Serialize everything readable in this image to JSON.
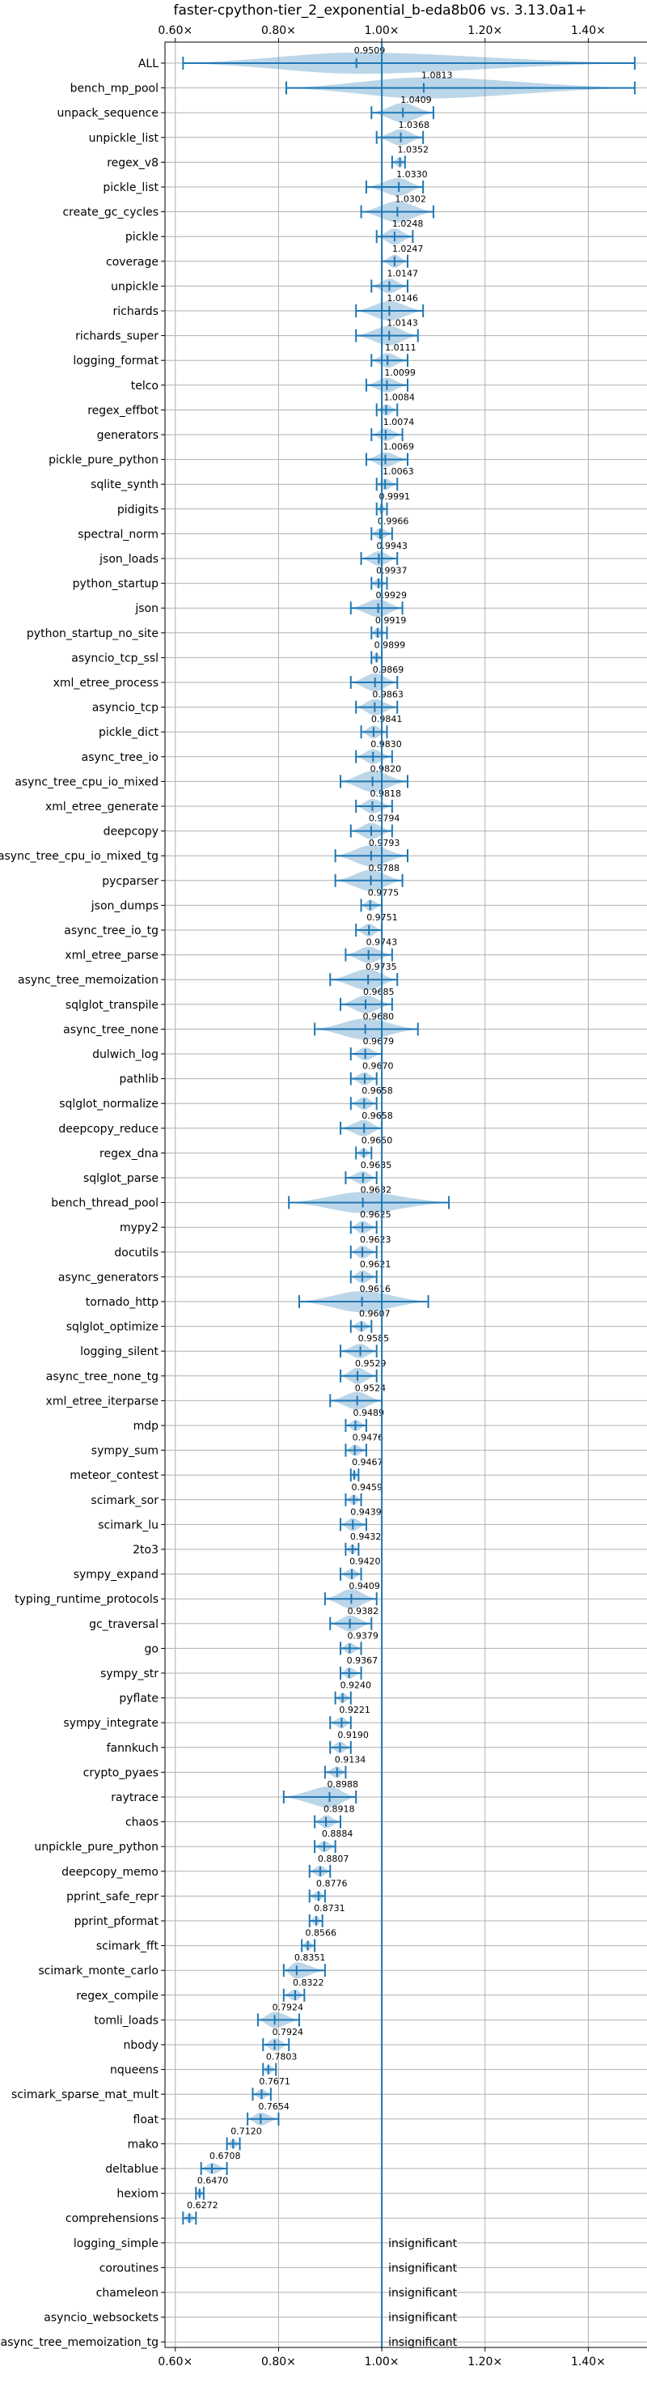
{
  "chart_data": {
    "type": "violin",
    "title": "faster-cpython-tier_2_exponential_b-eda8b06 vs. 3.13.0a1+",
    "x_ticks": [
      "0.60×",
      "0.80×",
      "1.00×",
      "1.20×",
      "1.40×"
    ],
    "x_tick_values": [
      0.6,
      0.8,
      1.0,
      1.2,
      1.4
    ],
    "xlim": [
      0.58,
      1.52
    ],
    "reference_line": 1.0,
    "grid": true,
    "insignificant_label": "insignificant",
    "rows": [
      {
        "name": "ALL",
        "value": "0.9509",
        "v": 0.9509,
        "lo": 0.615,
        "hi": 1.49,
        "spread": 0.06
      },
      {
        "name": "bench_mp_pool",
        "value": "1.0813",
        "v": 1.0813,
        "lo": 0.815,
        "hi": 1.49,
        "spread": 0.3
      },
      {
        "name": "unpack_sequence",
        "value": "1.0409",
        "v": 1.0409,
        "lo": 0.98,
        "hi": 1.1,
        "spread": 0.04
      },
      {
        "name": "unpickle_list",
        "value": "1.0368",
        "v": 1.0368,
        "lo": 0.99,
        "hi": 1.08,
        "spread": 0.03
      },
      {
        "name": "regex_v8",
        "value": "1.0352",
        "v": 1.0352,
        "lo": 1.02,
        "hi": 1.045,
        "spread": 0.012
      },
      {
        "name": "pickle_list",
        "value": "1.0330",
        "v": 1.033,
        "lo": 0.97,
        "hi": 1.08,
        "spread": 0.035
      },
      {
        "name": "create_gc_cycles",
        "value": "1.0302",
        "v": 1.0302,
        "lo": 0.96,
        "hi": 1.1,
        "spread": 0.045
      },
      {
        "name": "pickle",
        "value": "1.0248",
        "v": 1.0248,
        "lo": 0.99,
        "hi": 1.06,
        "spread": 0.03
      },
      {
        "name": "coverage",
        "value": "1.0247",
        "v": 1.0247,
        "lo": 1.0,
        "hi": 1.05,
        "spread": 0.02
      },
      {
        "name": "unpickle",
        "value": "1.0147",
        "v": 1.0147,
        "lo": 0.98,
        "hi": 1.05,
        "spread": 0.025
      },
      {
        "name": "richards",
        "value": "1.0146",
        "v": 1.0146,
        "lo": 0.95,
        "hi": 1.08,
        "spread": 0.04
      },
      {
        "name": "richards_super",
        "value": "1.0143",
        "v": 1.0143,
        "lo": 0.95,
        "hi": 1.07,
        "spread": 0.04
      },
      {
        "name": "logging_format",
        "value": "1.0111",
        "v": 1.0111,
        "lo": 0.98,
        "hi": 1.05,
        "spread": 0.025
      },
      {
        "name": "telco",
        "value": "1.0099",
        "v": 1.0099,
        "lo": 0.97,
        "hi": 1.05,
        "spread": 0.025
      },
      {
        "name": "regex_effbot",
        "value": "1.0084",
        "v": 1.0084,
        "lo": 0.99,
        "hi": 1.03,
        "spread": 0.015
      },
      {
        "name": "generators",
        "value": "1.0074",
        "v": 1.0074,
        "lo": 0.98,
        "hi": 1.04,
        "spread": 0.02
      },
      {
        "name": "pickle_pure_python",
        "value": "1.0069",
        "v": 1.0069,
        "lo": 0.97,
        "hi": 1.05,
        "spread": 0.025
      },
      {
        "name": "sqlite_synth",
        "value": "1.0063",
        "v": 1.0063,
        "lo": 0.99,
        "hi": 1.03,
        "spread": 0.015
      },
      {
        "name": "pidigits",
        "value": "0.9991",
        "v": 0.9991,
        "lo": 0.99,
        "hi": 1.01,
        "spread": 0.008
      },
      {
        "name": "spectral_norm",
        "value": "0.9966",
        "v": 0.9966,
        "lo": 0.98,
        "hi": 1.02,
        "spread": 0.015
      },
      {
        "name": "json_loads",
        "value": "0.9943",
        "v": 0.9943,
        "lo": 0.96,
        "hi": 1.03,
        "spread": 0.025
      },
      {
        "name": "python_startup",
        "value": "0.9937",
        "v": 0.9937,
        "lo": 0.98,
        "hi": 1.01,
        "spread": 0.012
      },
      {
        "name": "json",
        "value": "0.9929",
        "v": 0.9929,
        "lo": 0.94,
        "hi": 1.04,
        "spread": 0.035
      },
      {
        "name": "python_startup_no_site",
        "value": "0.9919",
        "v": 0.9919,
        "lo": 0.98,
        "hi": 1.01,
        "spread": 0.012
      },
      {
        "name": "asyncio_tcp_ssl",
        "value": "0.9899",
        "v": 0.9899,
        "lo": 0.98,
        "hi": 1.0,
        "spread": 0.01
      },
      {
        "name": "xml_etree_process",
        "value": "0.9869",
        "v": 0.9869,
        "lo": 0.94,
        "hi": 1.03,
        "spread": 0.035
      },
      {
        "name": "asyncio_tcp",
        "value": "0.9863",
        "v": 0.9863,
        "lo": 0.95,
        "hi": 1.03,
        "spread": 0.03
      },
      {
        "name": "pickle_dict",
        "value": "0.9841",
        "v": 0.9841,
        "lo": 0.96,
        "hi": 1.01,
        "spread": 0.02
      },
      {
        "name": "async_tree_io",
        "value": "0.9830",
        "v": 0.983,
        "lo": 0.95,
        "hi": 1.02,
        "spread": 0.025
      },
      {
        "name": "async_tree_cpu_io_mixed",
        "value": "0.9820",
        "v": 0.982,
        "lo": 0.92,
        "hi": 1.05,
        "spread": 0.045
      },
      {
        "name": "xml_etree_generate",
        "value": "0.9818",
        "v": 0.9818,
        "lo": 0.95,
        "hi": 1.02,
        "spread": 0.025
      },
      {
        "name": "deepcopy",
        "value": "0.9794",
        "v": 0.9794,
        "lo": 0.94,
        "hi": 1.02,
        "spread": 0.03
      },
      {
        "name": "async_tree_cpu_io_mixed_tg",
        "value": "0.9793",
        "v": 0.9793,
        "lo": 0.91,
        "hi": 1.05,
        "spread": 0.05
      },
      {
        "name": "pycparser",
        "value": "0.9788",
        "v": 0.9788,
        "lo": 0.91,
        "hi": 1.04,
        "spread": 0.045
      },
      {
        "name": "json_dumps",
        "value": "0.9775",
        "v": 0.9775,
        "lo": 0.96,
        "hi": 1.0,
        "spread": 0.015
      },
      {
        "name": "async_tree_io_tg",
        "value": "0.9751",
        "v": 0.9751,
        "lo": 0.95,
        "hi": 1.0,
        "spread": 0.02
      },
      {
        "name": "xml_etree_parse",
        "value": "0.9743",
        "v": 0.9743,
        "lo": 0.93,
        "hi": 1.02,
        "spread": 0.03
      },
      {
        "name": "async_tree_memoization",
        "value": "0.9735",
        "v": 0.9735,
        "lo": 0.9,
        "hi": 1.03,
        "spread": 0.045
      },
      {
        "name": "sqlglot_transpile",
        "value": "0.9685",
        "v": 0.9685,
        "lo": 0.92,
        "hi": 1.02,
        "spread": 0.035
      },
      {
        "name": "async_tree_none",
        "value": "0.9680",
        "v": 0.968,
        "lo": 0.87,
        "hi": 1.07,
        "spread": 0.06
      },
      {
        "name": "dulwich_log",
        "value": "0.9679",
        "v": 0.9679,
        "lo": 0.94,
        "hi": 1.0,
        "spread": 0.02
      },
      {
        "name": "pathlib",
        "value": "0.9670",
        "v": 0.967,
        "lo": 0.94,
        "hi": 0.99,
        "spread": 0.02
      },
      {
        "name": "sqlglot_normalize",
        "value": "0.9658",
        "v": 0.9658,
        "lo": 0.94,
        "hi": 0.99,
        "spread": 0.02
      },
      {
        "name": "deepcopy_reduce",
        "value": "0.9658",
        "v": 0.9658,
        "lo": 0.92,
        "hi": 1.0,
        "spread": 0.03
      },
      {
        "name": "regex_dna",
        "value": "0.9650",
        "v": 0.965,
        "lo": 0.95,
        "hi": 0.98,
        "spread": 0.01
      },
      {
        "name": "sqlglot_parse",
        "value": "0.9635",
        "v": 0.9635,
        "lo": 0.93,
        "hi": 0.99,
        "spread": 0.02
      },
      {
        "name": "bench_thread_pool",
        "value": "0.9632",
        "v": 0.9632,
        "lo": 0.82,
        "hi": 1.13,
        "spread": 0.1
      },
      {
        "name": "mypy2",
        "value": "0.9625",
        "v": 0.9625,
        "lo": 0.94,
        "hi": 0.99,
        "spread": 0.02
      },
      {
        "name": "docutils",
        "value": "0.9623",
        "v": 0.9623,
        "lo": 0.94,
        "hi": 0.99,
        "spread": 0.02
      },
      {
        "name": "async_generators",
        "value": "0.9621",
        "v": 0.9621,
        "lo": 0.94,
        "hi": 0.99,
        "spread": 0.02
      },
      {
        "name": "tornado_http",
        "value": "0.9616",
        "v": 0.9616,
        "lo": 0.84,
        "hi": 1.09,
        "spread": 0.08
      },
      {
        "name": "sqlglot_optimize",
        "value": "0.9607",
        "v": 0.9607,
        "lo": 0.94,
        "hi": 0.98,
        "spread": 0.015
      },
      {
        "name": "logging_silent",
        "value": "0.9585",
        "v": 0.9585,
        "lo": 0.92,
        "hi": 0.99,
        "spread": 0.025
      },
      {
        "name": "async_tree_none_tg",
        "value": "0.9529",
        "v": 0.9529,
        "lo": 0.92,
        "hi": 0.99,
        "spread": 0.03
      },
      {
        "name": "xml_etree_iterparse",
        "value": "0.9524",
        "v": 0.9524,
        "lo": 0.9,
        "hi": 1.0,
        "spread": 0.035
      },
      {
        "name": "mdp",
        "value": "0.9489",
        "v": 0.9489,
        "lo": 0.93,
        "hi": 0.97,
        "spread": 0.015
      },
      {
        "name": "sympy_sum",
        "value": "0.9476",
        "v": 0.9476,
        "lo": 0.93,
        "hi": 0.97,
        "spread": 0.015
      },
      {
        "name": "meteor_contest",
        "value": "0.9467",
        "v": 0.9467,
        "lo": 0.94,
        "hi": 0.955,
        "spread": 0.008
      },
      {
        "name": "scimark_sor",
        "value": "0.9459",
        "v": 0.9459,
        "lo": 0.93,
        "hi": 0.96,
        "spread": 0.012
      },
      {
        "name": "scimark_lu",
        "value": "0.9439",
        "v": 0.9439,
        "lo": 0.92,
        "hi": 0.97,
        "spread": 0.02
      },
      {
        "name": "2to3",
        "value": "0.9432",
        "v": 0.9432,
        "lo": 0.93,
        "hi": 0.955,
        "spread": 0.01
      },
      {
        "name": "sympy_expand",
        "value": "0.9420",
        "v": 0.942,
        "lo": 0.92,
        "hi": 0.96,
        "spread": 0.015
      },
      {
        "name": "typing_runtime_protocols",
        "value": "0.9409",
        "v": 0.9409,
        "lo": 0.89,
        "hi": 0.99,
        "spread": 0.04
      },
      {
        "name": "gc_traversal",
        "value": "0.9382",
        "v": 0.9382,
        "lo": 0.9,
        "hi": 0.98,
        "spread": 0.03
      },
      {
        "name": "go",
        "value": "0.9379",
        "v": 0.9379,
        "lo": 0.92,
        "hi": 0.96,
        "spread": 0.015
      },
      {
        "name": "sympy_str",
        "value": "0.9367",
        "v": 0.9367,
        "lo": 0.92,
        "hi": 0.96,
        "spread": 0.015
      },
      {
        "name": "pyflate",
        "value": "0.9240",
        "v": 0.924,
        "lo": 0.91,
        "hi": 0.94,
        "spread": 0.012
      },
      {
        "name": "sympy_integrate",
        "value": "0.9221",
        "v": 0.9221,
        "lo": 0.9,
        "hi": 0.94,
        "spread": 0.015
      },
      {
        "name": "fannkuch",
        "value": "0.9190",
        "v": 0.919,
        "lo": 0.9,
        "hi": 0.94,
        "spread": 0.015
      },
      {
        "name": "crypto_pyaes",
        "value": "0.9134",
        "v": 0.9134,
        "lo": 0.89,
        "hi": 0.93,
        "spread": 0.015
      },
      {
        "name": "raytrace",
        "value": "0.8988",
        "v": 0.8988,
        "lo": 0.81,
        "hi": 0.95,
        "spread": 0.045
      },
      {
        "name": "chaos",
        "value": "0.8918",
        "v": 0.8918,
        "lo": 0.87,
        "hi": 0.92,
        "spread": 0.02
      },
      {
        "name": "unpickle_pure_python",
        "value": "0.8884",
        "v": 0.8884,
        "lo": 0.87,
        "hi": 0.91,
        "spread": 0.015
      },
      {
        "name": "deepcopy_memo",
        "value": "0.8807",
        "v": 0.8807,
        "lo": 0.86,
        "hi": 0.9,
        "spread": 0.015
      },
      {
        "name": "pprint_safe_repr",
        "value": "0.8776",
        "v": 0.8776,
        "lo": 0.86,
        "hi": 0.89,
        "spread": 0.012
      },
      {
        "name": "pprint_pformat",
        "value": "0.8731",
        "v": 0.8731,
        "lo": 0.86,
        "hi": 0.885,
        "spread": 0.01
      },
      {
        "name": "scimark_fft",
        "value": "0.8566",
        "v": 0.8566,
        "lo": 0.845,
        "hi": 0.87,
        "spread": 0.01
      },
      {
        "name": "scimark_monte_carlo",
        "value": "0.8351",
        "v": 0.8351,
        "lo": 0.81,
        "hi": 0.89,
        "spread": 0.03
      },
      {
        "name": "regex_compile",
        "value": "0.8322",
        "v": 0.8322,
        "lo": 0.81,
        "hi": 0.85,
        "spread": 0.015
      },
      {
        "name": "tomli_loads",
        "value": "0.7924",
        "v": 0.7924,
        "lo": 0.76,
        "hi": 0.84,
        "spread": 0.03
      },
      {
        "name": "nbody",
        "value": "0.7924",
        "v": 0.7924,
        "lo": 0.77,
        "hi": 0.82,
        "spread": 0.02
      },
      {
        "name": "nqueens",
        "value": "0.7803",
        "v": 0.7803,
        "lo": 0.77,
        "hi": 0.795,
        "spread": 0.01
      },
      {
        "name": "scimark_sparse_mat_mult",
        "value": "0.7671",
        "v": 0.7671,
        "lo": 0.75,
        "hi": 0.785,
        "spread": 0.012
      },
      {
        "name": "float",
        "value": "0.7654",
        "v": 0.7654,
        "lo": 0.74,
        "hi": 0.8,
        "spread": 0.02
      },
      {
        "name": "mako",
        "value": "0.7120",
        "v": 0.712,
        "lo": 0.7,
        "hi": 0.725,
        "spread": 0.01
      },
      {
        "name": "deltablue",
        "value": "0.6708",
        "v": 0.6708,
        "lo": 0.65,
        "hi": 0.7,
        "spread": 0.015
      },
      {
        "name": "hexiom",
        "value": "0.6470",
        "v": 0.647,
        "lo": 0.64,
        "hi": 0.655,
        "spread": 0.008
      },
      {
        "name": "comprehensions",
        "value": "0.6272",
        "v": 0.6272,
        "lo": 0.615,
        "hi": 0.64,
        "spread": 0.01
      },
      {
        "name": "logging_simple",
        "value": "insignificant",
        "insignificant": true
      },
      {
        "name": "coroutines",
        "value": "insignificant",
        "insignificant": true
      },
      {
        "name": "chameleon",
        "value": "insignificant",
        "insignificant": true
      },
      {
        "name": "asyncio_websockets",
        "value": "insignificant",
        "insignificant": true
      },
      {
        "name": "async_tree_memoization_tg",
        "value": "insignificant",
        "insignificant": true
      }
    ]
  },
  "colors": {
    "accent": "#1f77b4",
    "violin_fill": "#aec7e8",
    "grid": "#b0b0b0"
  }
}
